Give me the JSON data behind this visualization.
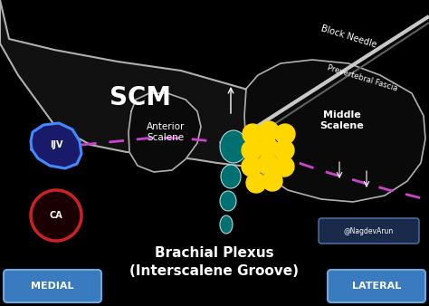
{
  "bg_color": "#000000",
  "title_line1": "Brachial Plexus",
  "title_line2": "(Interscalene Groove)",
  "scm_label": "SCM",
  "anterior_scalene_label": "Anterior\nScalene",
  "middle_scalene_label": "Middle\nScalene",
  "ijv_label": "IJV",
  "ca_label": "CA",
  "block_needle_label": "Block Needle",
  "prevertebral_fascia_label": "Prevertebral Fascia",
  "medial_label": "MEDIAL",
  "lateral_label": "LATERAL",
  "watermark": "@NagdevArun",
  "scm_outline_color": "#b0b0b0",
  "fascia_dashed_color": "#cc44cc",
  "ijv_fill_color": "#1a1a6a",
  "ijv_edge_color": "#4488ff",
  "ca_fill_color": "#1a0000",
  "ca_edge_color": "#cc2222",
  "teal_nerve_color": "#007070",
  "teal_outline_color": "#aadddd",
  "yellow_nerve_color": "#ffd700",
  "needle_color": "#c8c8c8",
  "needle_dark": "#606060",
  "button_color": "#3a7abf",
  "button_edge_color": "#6aaade",
  "button_text_color": "#ffffff",
  "label_text_color": "#ffffff",
  "watermark_box_color": "#1a2a4a",
  "watermark_box_edge": "#5577aa"
}
